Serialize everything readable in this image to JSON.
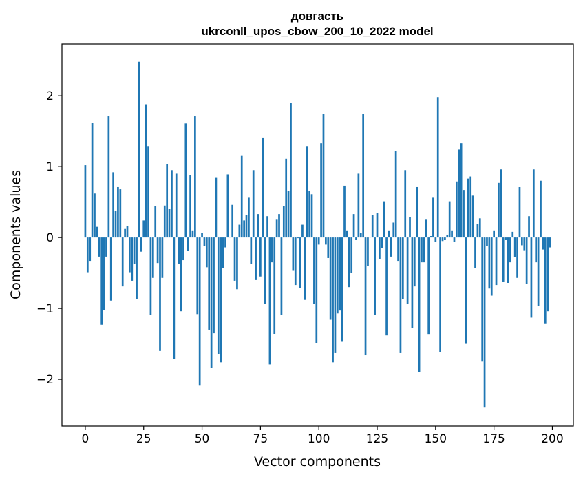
{
  "chart_data": {
    "type": "bar",
    "title": "довгасть",
    "subtitle": "ukrconll_upos_cbow_200_10_2022 model",
    "xlabel": "Vector components",
    "ylabel": "Components values",
    "xlim": [
      -10,
      209
    ],
    "ylim": [
      -2.66,
      2.73
    ],
    "xticks": [
      0,
      25,
      50,
      75,
      100,
      125,
      150,
      175,
      200
    ],
    "yticks": [
      -2,
      -1,
      0,
      1,
      2
    ],
    "bar_width": 0.8,
    "bar_color": "#1f77b4",
    "grid": false,
    "legend": "none",
    "values": [
      1.02,
      -0.49,
      -0.33,
      1.62,
      0.62,
      0.15,
      -0.27,
      -1.23,
      -1.02,
      -0.27,
      1.71,
      -0.89,
      0.92,
      0.38,
      0.72,
      0.68,
      -0.69,
      0.12,
      0.16,
      -0.49,
      -0.61,
      -0.37,
      -0.87,
      2.48,
      -0.2,
      0.24,
      1.88,
      1.29,
      -1.09,
      -0.57,
      0.44,
      -0.36,
      -1.6,
      -0.57,
      0.45,
      1.04,
      0.4,
      0.95,
      -1.71,
      0.9,
      -0.37,
      -1.04,
      -0.32,
      1.61,
      -0.19,
      0.88,
      0.1,
      1.71,
      -1.08,
      -2.09,
      0.06,
      -0.12,
      -0.42,
      -1.3,
      -1.84,
      -1.35,
      0.85,
      -1.65,
      -1.76,
      -0.43,
      -0.14,
      0.89,
      0.01,
      0.46,
      -0.61,
      -0.73,
      0.18,
      1.16,
      0.24,
      0.32,
      0.57,
      -0.37,
      0.95,
      -0.6,
      0.33,
      -0.55,
      1.41,
      -0.94,
      0.3,
      -1.79,
      -0.35,
      -1.36,
      0.26,
      0.33,
      -1.09,
      0.44,
      1.11,
      0.66,
      1.9,
      -0.47,
      -0.67,
      -0.01,
      -0.71,
      0.18,
      -0.88,
      1.29,
      0.66,
      0.61,
      -0.94,
      -1.49,
      -0.1,
      1.33,
      1.74,
      -0.1,
      -0.29,
      -1.16,
      -1.76,
      -1.63,
      -1.07,
      -1.03,
      -1.47,
      0.73,
      0.1,
      -0.7,
      -0.5,
      0.33,
      -0.03,
      0.9,
      0.06,
      1.74,
      -1.66,
      -0.4,
      0.01,
      0.32,
      -1.09,
      0.35,
      -0.3,
      -0.15,
      0.51,
      -1.38,
      0.1,
      -0.27,
      0.21,
      1.22,
      -0.33,
      -1.63,
      -0.87,
      0.95,
      -0.94,
      0.29,
      -1.28,
      -0.69,
      0.72,
      -1.9,
      -0.35,
      -0.35,
      0.26,
      -1.37,
      0.02,
      0.57,
      -0.06,
      1.98,
      -1.62,
      -0.05,
      -0.03,
      0.04,
      0.51,
      0.1,
      -0.06,
      0.79,
      1.24,
      1.33,
      0.67,
      -1.5,
      0.83,
      0.86,
      0.59,
      -0.43,
      0.19,
      0.27,
      -1.75,
      -2.4,
      -0.12,
      -0.72,
      -0.82,
      0.1,
      -0.67,
      0.77,
      0.96,
      -0.63,
      -0.03,
      -0.64,
      -0.35,
      0.08,
      -0.28,
      -0.57,
      0.71,
      -0.11,
      -0.18,
      -0.65,
      0.3,
      -1.13,
      0.96,
      -0.35,
      -0.97,
      0.8,
      -0.17,
      -1.22,
      -1.04,
      -0.14
    ]
  }
}
